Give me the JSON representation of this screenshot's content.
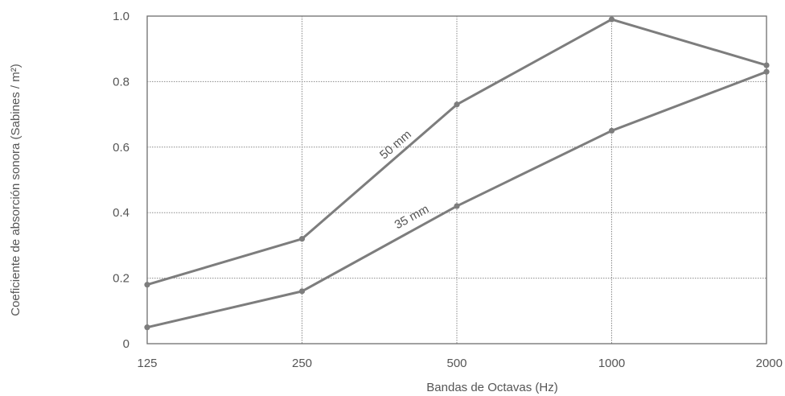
{
  "chart_data": {
    "type": "line",
    "title": "",
    "xlabel": "Bandas de Octavas (Hz)",
    "ylabel": "Coeficiente de absorción sonora (Sabines / m²)",
    "categories": [
      "125",
      "250",
      "500",
      "1000",
      "2000"
    ],
    "y_ticks": [
      "0",
      "0.2",
      "0.4",
      "0.6",
      "0.8",
      "1.0"
    ],
    "ylim": [
      0,
      1.0
    ],
    "grid": true,
    "legend": "none",
    "series": [
      {
        "name": "50 mm",
        "values": [
          0.18,
          0.32,
          0.73,
          0.99,
          0.85
        ]
      },
      {
        "name": "35 mm",
        "values": [
          0.05,
          0.16,
          0.42,
          0.65,
          0.83
        ]
      }
    ],
    "colors": {
      "line": "#7d7d7d",
      "grid": "#8a8a8a",
      "text": "#555555"
    }
  }
}
